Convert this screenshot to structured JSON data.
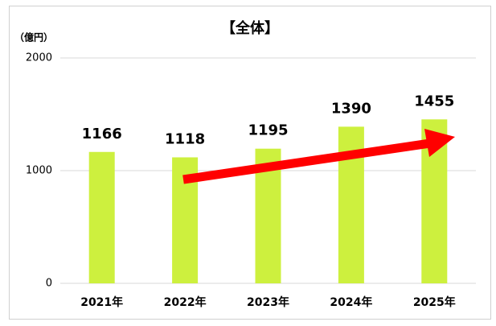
{
  "chart_data": {
    "type": "bar",
    "title": "【全体】",
    "y_label": "（億円）",
    "categories": [
      "2021年",
      "2022年",
      "2023年",
      "2024年",
      "2025年"
    ],
    "values": [
      1166,
      1118,
      1195,
      1390,
      1455
    ],
    "color": "#cdf03e",
    "ylim": [
      0,
      2000
    ],
    "yticks": [
      0,
      1000,
      2000
    ],
    "grid": true
  }
}
